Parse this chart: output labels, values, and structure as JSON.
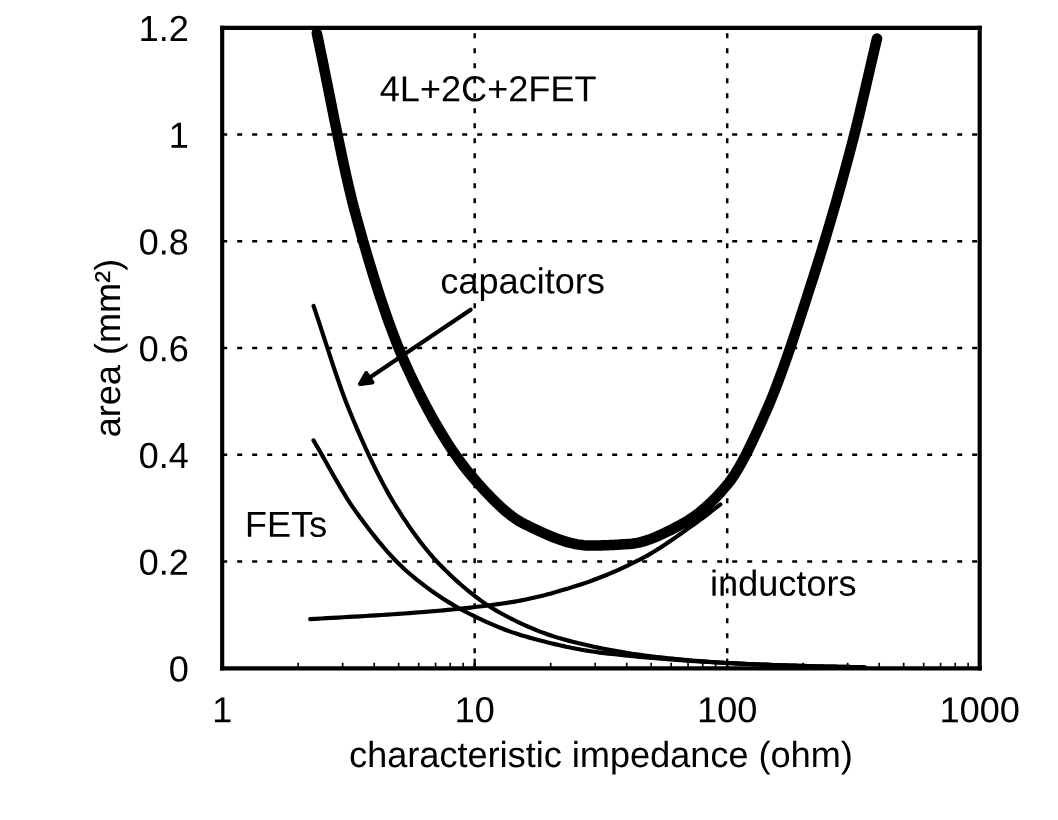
{
  "chart_data": {
    "type": "line",
    "xlabel": "characteristic impedance (ohm)",
    "ylabel": "area (mm²)",
    "log": "x",
    "xlim": [
      1,
      1000
    ],
    "xticks": [
      1,
      10,
      100,
      1000
    ],
    "ylim": [
      0,
      1.2
    ],
    "yticks": [
      0,
      0.2,
      0.4,
      0.6,
      0.8,
      1,
      1.2
    ],
    "grid": true,
    "line_style": "solid",
    "marker": "none",
    "series": [
      {
        "color": "#000000",
        "x": [
          2.37,
          3.38,
          5.44,
          9.86,
          15.8,
          28.7,
          41,
          66,
          100,
          143,
          216,
          309,
          392
        ],
        "values": [
          1.19,
          0.85,
          0.56,
          0.357,
          0.27,
          0.23,
          0.233,
          0.27,
          0.344,
          0.483,
          0.723,
          0.975,
          1.18
        ]
      },
      {
        "color": "#000000",
        "x": [
          2.3,
          3.19,
          4.83,
          7.32,
          12.5,
          22.6,
          49,
          100,
          216,
          350
        ],
        "values": [
          0.679,
          0.483,
          0.307,
          0.193,
          0.105,
          0.054,
          0.023,
          0.01,
          0.004,
          0.002
        ]
      },
      {
        "color": "#000000",
        "x": [
          2.3,
          3.38,
          5.44,
          9.28,
          15.8,
          32,
          100,
          216,
          350
        ],
        "values": [
          0.427,
          0.294,
          0.18,
          0.105,
          0.06,
          0.029,
          0.01,
          0.004,
          0.002
        ]
      },
      {
        "color": "#000000",
        "x": [
          2.23,
          6.1,
          14,
          25.5,
          46,
          74,
          94
        ],
        "values": [
          0.092,
          0.105,
          0.124,
          0.155,
          0.206,
          0.27,
          0.307
        ]
      }
    ],
    "annotations": [
      "4L+2C+2FET",
      "capacitors",
      "FETs",
      "inductors"
    ]
  }
}
